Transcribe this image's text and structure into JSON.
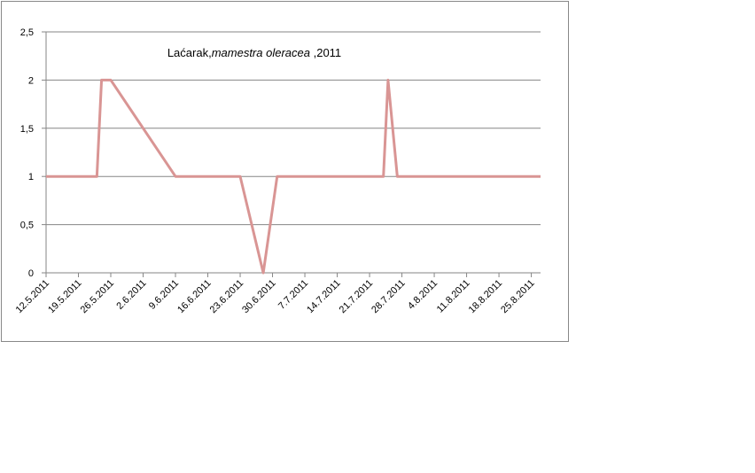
{
  "chart_data": {
    "type": "line",
    "title": {
      "place": "Laćarak,",
      "species": "mamestra oleracea",
      "year": " ,2011"
    },
    "x": [
      "12.5.2011",
      "23.5.2011",
      "24.5.2011",
      "26.5.2011",
      "9.6.2011",
      "23.6.2011",
      "28.6.2011",
      "1.7.2011",
      "24.7.2011",
      "25.7.2011",
      "27.7.2011",
      "27.8.2011"
    ],
    "series": [
      {
        "color": "#d99594",
        "values": [
          1,
          1,
          2,
          2,
          1,
          1,
          0,
          1,
          1,
          2,
          1,
          1
        ]
      }
    ],
    "xlim": [
      "12.5.2011",
      "27.8.2011"
    ],
    "xticks": [
      "12.5.2011",
      "19.5.2011",
      "26.5.2011",
      "2.6.2011",
      "9.6.2011",
      "16.6.2011",
      "23.6.2011",
      "30.6.2011",
      "7.7.2011",
      "14.7.2011",
      "21.7.2011",
      "28.7.2011",
      "4.8.2011",
      "11.8.2011",
      "18.8.2011",
      "25.8.2011"
    ],
    "ylim": [
      0,
      2.5
    ],
    "yticks": [
      0,
      {
        "value": 0.5,
        "label": "0,5"
      },
      1,
      {
        "value": 1.5,
        "label": "1,5"
      },
      2,
      {
        "value": 2.5,
        "label": "2,5"
      }
    ],
    "grid": true
  }
}
